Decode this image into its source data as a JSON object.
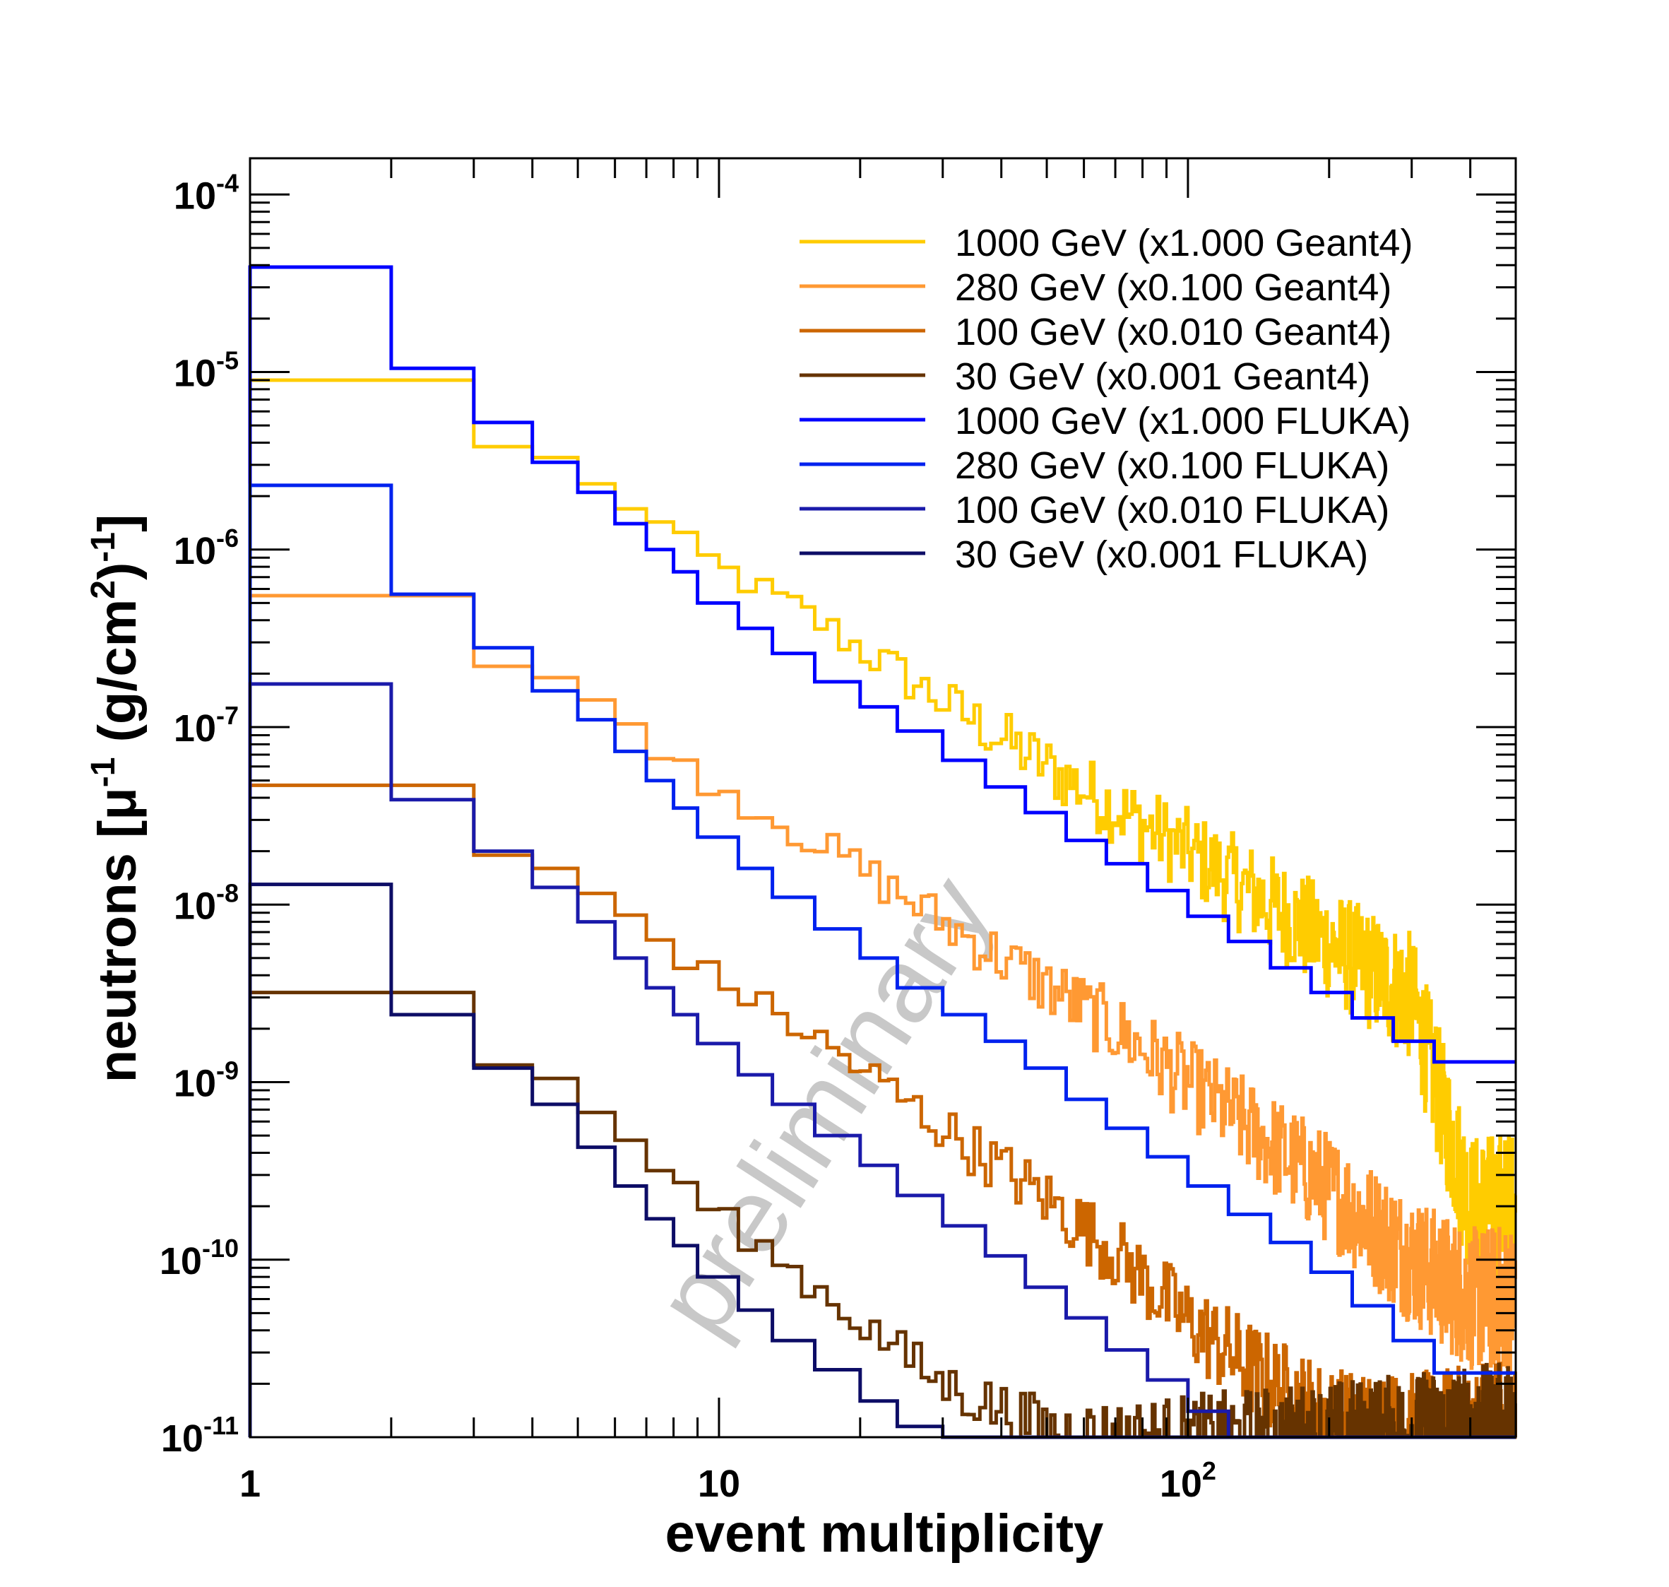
{
  "chart_data": {
    "type": "line",
    "step": true,
    "xlabel": "event multiplicity",
    "ylabel_parts": [
      "neutrons [",
      "μ",
      "-1",
      " (g/cm",
      "2",
      ")",
      "-1",
      "]"
    ],
    "x_scale": "log",
    "y_scale": "log",
    "xlim": [
      1,
      500
    ],
    "ylim": [
      1e-11,
      0.00016
    ],
    "x_ticks": [
      {
        "value": 1,
        "base": "1",
        "exp": ""
      },
      {
        "value": 10,
        "base": "10",
        "exp": ""
      },
      {
        "value": 100,
        "base": "10",
        "exp": "2"
      }
    ],
    "y_ticks": [
      {
        "value": 0.0001,
        "base": "10",
        "exp": "-4"
      },
      {
        "value": 1e-05,
        "base": "10",
        "exp": "-5"
      },
      {
        "value": 1e-06,
        "base": "10",
        "exp": "-6"
      },
      {
        "value": 1e-07,
        "base": "10",
        "exp": "-7"
      },
      {
        "value": 1e-08,
        "base": "10",
        "exp": "-8"
      },
      {
        "value": 1e-09,
        "base": "10",
        "exp": "-9"
      },
      {
        "value": 1e-10,
        "base": "10",
        "exp": "-10"
      },
      {
        "value": 1e-11,
        "base": "10",
        "exp": "-11"
      }
    ],
    "grid": false,
    "legend_position": "top-right",
    "watermark": "preliminary",
    "series": [
      {
        "name": "1000 GeV (x1.000 Geant4)",
        "color": "#ffcc00",
        "noisy": true,
        "edges": [
          1,
          2,
          3,
          4,
          5,
          6,
          7,
          8,
          10,
          15,
          20,
          30,
          50,
          70,
          100,
          150,
          200,
          300,
          400,
          500
        ],
        "values": [
          9e-06,
          5e-06,
          3.8e-06,
          3.3e-06,
          2.6e-06,
          2e-06,
          1.6e-06,
          1.2e-06,
          8e-07,
          4.5e-07,
          2.8e-07,
          1.4e-07,
          6e-08,
          3.5e-08,
          2e-08,
          1e-08,
          6e-09,
          3e-09,
          2e-10
        ]
      },
      {
        "name": "280 GeV (x0.100 Geant4)",
        "color": "#ff9933",
        "noisy": true,
        "edges": [
          1,
          2,
          3,
          4,
          5,
          6,
          7,
          8,
          10,
          15,
          20,
          30,
          50,
          70,
          100,
          150,
          200,
          300,
          400,
          500
        ],
        "values": [
          5.5e-07,
          3e-07,
          2.2e-07,
          1.9e-07,
          1.5e-07,
          1.2e-07,
          9e-08,
          6.5e-08,
          4.5e-08,
          2.5e-08,
          1.6e-08,
          8e-09,
          3.5e-09,
          2e-09,
          1e-09,
          4.5e-10,
          2.5e-10,
          1e-10,
          6e-11
        ]
      },
      {
        "name": "100 GeV (x0.010 Geant4)",
        "color": "#cc6600",
        "noisy": true,
        "edges": [
          1,
          2,
          3,
          4,
          5,
          6,
          7,
          8,
          10,
          15,
          20,
          30,
          50,
          70,
          100,
          150,
          200,
          300,
          400,
          500
        ],
        "values": [
          4.7e-08,
          2.5e-08,
          1.9e-08,
          1.6e-08,
          1.3e-08,
          1e-08,
          7.5e-09,
          5.5e-09,
          3.8e-09,
          2e-09,
          1.2e-09,
          5.5e-10,
          2.2e-10,
          1.1e-10,
          4.5e-11,
          2e-11,
          1.2e-11,
          1e-11,
          1e-11
        ]
      },
      {
        "name": "30 GeV (x0.001 Geant4)",
        "color": "#663300",
        "noisy": true,
        "edges": [
          1,
          2,
          3,
          4,
          5,
          6,
          7,
          8,
          10,
          15,
          20,
          30,
          50,
          70,
          100,
          150,
          200,
          300,
          400,
          500
        ],
        "values": [
          3.2e-09,
          1.6e-09,
          1.25e-09,
          1.05e-09,
          8e-10,
          5.5e-10,
          4e-10,
          2.8e-10,
          1.8e-10,
          8e-11,
          4.5e-11,
          2e-11,
          1.1e-11,
          1e-11,
          1e-11,
          1e-11,
          1e-11,
          1e-11,
          1e-11
        ]
      },
      {
        "name": "1000 GeV (x1.000 FLUKA)",
        "color": "#0000ff",
        "noisy": false,
        "edges": [
          1,
          2,
          3,
          4,
          5,
          6,
          7,
          8,
          9,
          11,
          13,
          16,
          20,
          24,
          30,
          37,
          45,
          55,
          67,
          82,
          100,
          122,
          150,
          183,
          224,
          274,
          335,
          500
        ],
        "values": [
          3.9e-05,
          1.05e-05,
          5.2e-06,
          3.1e-06,
          2.1e-06,
          1.4e-06,
          1e-06,
          7.5e-07,
          5e-07,
          3.6e-07,
          2.6e-07,
          1.8e-07,
          1.3e-07,
          9.5e-08,
          6.5e-08,
          4.6e-08,
          3.3e-08,
          2.3e-08,
          1.7e-08,
          1.2e-08,
          8.6e-09,
          6.2e-09,
          4.4e-09,
          3.2e-09,
          2.3e-09,
          1.7e-09,
          1.3e-09
        ]
      },
      {
        "name": "280 GeV (x0.100 FLUKA)",
        "color": "#0022ee",
        "noisy": false,
        "edges": [
          1,
          2,
          3,
          4,
          5,
          6,
          7,
          8,
          9,
          11,
          13,
          16,
          20,
          24,
          30,
          37,
          45,
          55,
          67,
          82,
          100,
          122,
          150,
          183,
          224,
          274,
          335,
          500
        ],
        "values": [
          2.3e-06,
          5.6e-07,
          2.8e-07,
          1.6e-07,
          1.1e-07,
          7.3e-08,
          5e-08,
          3.5e-08,
          2.4e-08,
          1.6e-08,
          1.1e-08,
          7.3e-09,
          5e-09,
          3.4e-09,
          2.4e-09,
          1.7e-09,
          1.2e-09,
          8e-10,
          5.5e-10,
          3.8e-10,
          2.6e-10,
          1.8e-10,
          1.25e-10,
          8.5e-11,
          5.5e-11,
          3.5e-11,
          2.3e-11
        ]
      },
      {
        "name": "100 GeV (x0.010 FLUKA)",
        "color": "#1a1aaa",
        "noisy": false,
        "edges": [
          1,
          2,
          3,
          4,
          5,
          6,
          7,
          8,
          9,
          11,
          13,
          16,
          20,
          24,
          30,
          37,
          45,
          55,
          67,
          82,
          100,
          122,
          150,
          183,
          224,
          274,
          335,
          500
        ],
        "values": [
          1.75e-07,
          3.9e-08,
          2e-08,
          1.25e-08,
          8e-09,
          5e-09,
          3.4e-09,
          2.4e-09,
          1.65e-09,
          1.1e-09,
          7.5e-10,
          5e-10,
          3.4e-10,
          2.3e-10,
          1.55e-10,
          1.05e-10,
          7e-11,
          4.7e-11,
          3.1e-11,
          2.1e-11,
          1.4e-11,
          1e-11,
          1e-11,
          1e-11,
          1e-11,
          1e-11,
          1e-11
        ]
      },
      {
        "name": "30 GeV (x0.001 FLUKA)",
        "color": "#0d0d66",
        "noisy": false,
        "edges": [
          1,
          2,
          3,
          4,
          5,
          6,
          7,
          8,
          9,
          11,
          13,
          16,
          20,
          24,
          30,
          37,
          45,
          55,
          67,
          82,
          100,
          122,
          150,
          183,
          224,
          274,
          335,
          500
        ],
        "values": [
          1.3e-08,
          2.4e-09,
          1.2e-09,
          7.5e-10,
          4.3e-10,
          2.6e-10,
          1.7e-10,
          1.2e-10,
          8e-11,
          5.2e-11,
          3.5e-11,
          2.4e-11,
          1.6e-11,
          1.15e-11,
          1e-11,
          1e-11,
          1e-11,
          1e-11,
          1e-11,
          1e-11,
          1e-11,
          1e-11,
          1e-11,
          1e-11,
          1e-11,
          1e-11,
          1e-11
        ]
      }
    ]
  }
}
